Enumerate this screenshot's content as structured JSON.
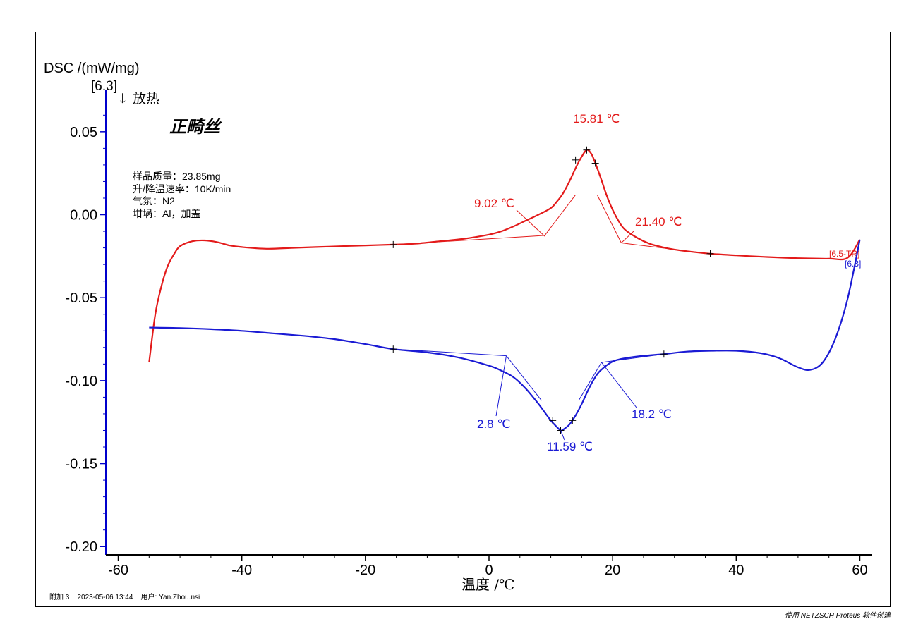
{
  "window": {
    "footer_left": "附加 3    2023-05-06 13:44    用户: Yan.Zhou.nsi",
    "footer_right": "使用 NETZSCH Proteus 软件创建"
  },
  "chart_data": {
    "type": "line",
    "title": "正畸丝",
    "ylabel": "DSC /(mW/mg)",
    "ylabel_segment": "[6.3]",
    "exo_label": "↓ 放热",
    "xlabel": "温度 /℃",
    "xlim": [
      -62,
      62
    ],
    "ylim": [
      -0.205,
      0.075
    ],
    "grid": false,
    "x_ticks": [
      -60,
      -40,
      -20,
      0,
      20,
      40,
      60
    ],
    "y_ticks": [
      0.05,
      0.0,
      -0.05,
      -0.1,
      -0.15,
      -0.2
    ],
    "y_tick_labels": [
      "0.05",
      "0.00",
      "-0.05",
      "-0.10",
      "-0.15",
      "-0.20"
    ],
    "info_lines": [
      "样品质量：23.85mg",
      "升/降温速率：10K/min",
      "气氛：N2",
      "坩埚：Al，加盖"
    ],
    "colors": {
      "heating": "#e31a1a",
      "cooling": "#1a1ad4",
      "axis": "#0000cc"
    },
    "series": [
      {
        "name": "[6.5-TR]",
        "color": "#e31a1a",
        "x": [
          -55,
          -54,
          -53,
          -52,
          -51,
          -50,
          -48,
          -46,
          -44,
          -42,
          -40,
          -36,
          -32,
          -28,
          -24,
          -20,
          -15.5,
          -12,
          -8,
          -4,
          0,
          2,
          4,
          6,
          8,
          10,
          11,
          12,
          13,
          14,
          15,
          15.8,
          16.5,
          17,
          18,
          19,
          20,
          21,
          22,
          24,
          26,
          28,
          30,
          32,
          35.8,
          40,
          45,
          50,
          55,
          58,
          60
        ],
        "y": [
          -0.089,
          -0.06,
          -0.043,
          -0.031,
          -0.024,
          -0.019,
          -0.016,
          -0.0155,
          -0.0165,
          -0.0185,
          -0.0195,
          -0.0205,
          -0.02,
          -0.0195,
          -0.019,
          -0.0185,
          -0.018,
          -0.0175,
          -0.016,
          -0.0145,
          -0.012,
          -0.01,
          -0.007,
          -0.0035,
          0.0,
          0.004,
          0.008,
          0.013,
          0.02,
          0.028,
          0.035,
          0.039,
          0.037,
          0.033,
          0.023,
          0.012,
          0.003,
          -0.004,
          -0.009,
          -0.014,
          -0.0175,
          -0.0195,
          -0.021,
          -0.022,
          -0.0235,
          -0.0245,
          -0.0255,
          -0.0262,
          -0.0265,
          -0.026,
          -0.015
        ]
      },
      {
        "name": "[6.3]",
        "color": "#1a1ad4",
        "x": [
          -55,
          -50,
          -45,
          -40,
          -35,
          -30,
          -25,
          -20,
          -15.5,
          -10,
          -5,
          0,
          2,
          4,
          6,
          8,
          9,
          10,
          11,
          11.6,
          12,
          13,
          14,
          15,
          16,
          17,
          18,
          20,
          22,
          25,
          28.3,
          32,
          36,
          40,
          44,
          47,
          50,
          52,
          54,
          56,
          58,
          60
        ],
        "y": [
          -0.068,
          -0.0683,
          -0.069,
          -0.07,
          -0.0715,
          -0.073,
          -0.075,
          -0.078,
          -0.081,
          -0.083,
          -0.086,
          -0.091,
          -0.094,
          -0.098,
          -0.105,
          -0.114,
          -0.119,
          -0.124,
          -0.128,
          -0.13,
          -0.1295,
          -0.1265,
          -0.121,
          -0.114,
          -0.106,
          -0.099,
          -0.094,
          -0.0885,
          -0.0865,
          -0.085,
          -0.084,
          -0.0825,
          -0.082,
          -0.082,
          -0.0835,
          -0.0865,
          -0.092,
          -0.0935,
          -0.089,
          -0.075,
          -0.051,
          -0.015
        ]
      }
    ],
    "annotations": [
      {
        "label": "15.81 ℃",
        "series": "heating",
        "x": 15.81,
        "y": 0.039,
        "type": "peak"
      },
      {
        "label": "9.02 ℃",
        "series": "heating",
        "x": 9.02,
        "y": -0.013,
        "type": "onset"
      },
      {
        "label": "21.40 ℃",
        "series": "heating",
        "x": 21.4,
        "y": -0.017,
        "type": "end"
      },
      {
        "label": "11.59 ℃",
        "series": "cooling",
        "x": 11.59,
        "y": -0.13,
        "type": "peak"
      },
      {
        "label": "2.8 ℃",
        "series": "cooling",
        "x": 2.8,
        "y": -0.085,
        "type": "end"
      },
      {
        "label": "18.2 ℃",
        "series": "cooling",
        "x": 18.2,
        "y": -0.089,
        "type": "onset"
      }
    ],
    "markers": [
      {
        "series": "heating",
        "x": [
          -15.5,
          14.0,
          15.81,
          17.2,
          35.8
        ],
        "y": [
          -0.018,
          0.033,
          0.039,
          0.031,
          -0.0235
        ]
      },
      {
        "series": "cooling",
        "x": [
          -15.5,
          10.3,
          11.59,
          13.5,
          28.3
        ],
        "y": [
          -0.081,
          -0.124,
          -0.13,
          -0.124,
          -0.084
        ]
      }
    ],
    "end_labels": [
      "[6.5-TR]",
      "[6.3]"
    ]
  }
}
